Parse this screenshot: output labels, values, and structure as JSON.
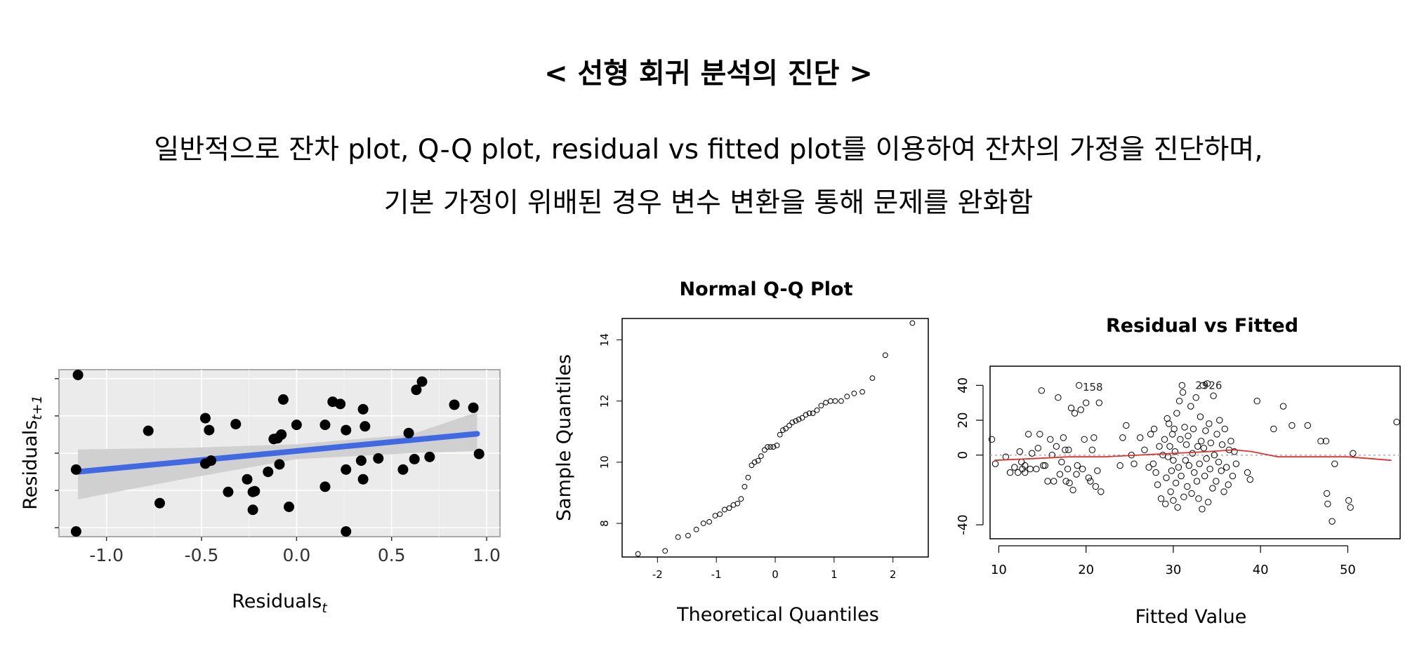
{
  "header": {
    "title": "< 선형 회귀 분석의 진단 >",
    "line1": "일반적으로 잔차 plot, Q-Q plot, residual vs fitted plot를 이용하여 잔차의 가정을 진단하며,",
    "line2": "기본 가정이 위배된 경우 변수 변환을 통해 문제를 완화함"
  },
  "chart_data": [
    {
      "type": "scatter",
      "title": "",
      "xlabel": "Residuals",
      "xlabel_sub": "t",
      "ylabel": "Residuals",
      "ylabel_sub": "t+1",
      "xlim": [
        -1.25,
        1.07
      ],
      "ylim": [
        -1.12,
        1.12
      ],
      "xticks": [
        -1.0,
        -0.5,
        0.0,
        0.5,
        1.0
      ],
      "xtick_labels": [
        "-1.0",
        "-0.5",
        "0.0",
        "0.5",
        "1.0"
      ],
      "yticks": [
        -1.0,
        -0.5,
        0.0,
        0.5,
        1.0
      ],
      "ytick_labels": [],
      "grid": true,
      "regression": {
        "x": [
          -1.15,
          0.95
        ],
        "y": [
          -0.25,
          0.26
        ],
        "color": "#4169e1"
      },
      "band": {
        "x": [
          -1.15,
          -0.6,
          0.0,
          0.6,
          0.95
        ],
        "upper": [
          0.05,
          0.07,
          0.12,
          0.25,
          0.55
        ],
        "lower": [
          -0.62,
          -0.35,
          -0.08,
          0.0,
          0.03
        ],
        "color": "#d0d0d0"
      },
      "points": [
        [
          -1.15,
          1.05
        ],
        [
          -1.16,
          -1.05
        ],
        [
          -1.16,
          -0.22
        ],
        [
          -0.78,
          0.3
        ],
        [
          -0.72,
          -0.67
        ],
        [
          -0.48,
          0.47
        ],
        [
          -0.46,
          0.31
        ],
        [
          -0.48,
          -0.14
        ],
        [
          -0.45,
          -0.1
        ],
        [
          -0.36,
          -0.52
        ],
        [
          -0.32,
          0.39
        ],
        [
          -0.26,
          -0.35
        ],
        [
          -0.23,
          -0.52
        ],
        [
          -0.22,
          -0.51
        ],
        [
          -0.23,
          -0.76
        ],
        [
          -0.15,
          -0.25
        ],
        [
          -0.12,
          0.19
        ],
        [
          -0.1,
          0.2
        ],
        [
          -0.08,
          0.25
        ],
        [
          -0.09,
          -0.15
        ],
        [
          -0.07,
          0.72
        ],
        [
          -0.04,
          -0.72
        ],
        [
          0.0,
          0.38
        ],
        [
          0.15,
          -0.45
        ],
        [
          0.15,
          0.38
        ],
        [
          0.19,
          0.69
        ],
        [
          0.23,
          0.66
        ],
        [
          0.26,
          0.31
        ],
        [
          0.26,
          -0.22
        ],
        [
          0.26,
          -1.05
        ],
        [
          0.34,
          -0.1
        ],
        [
          0.35,
          -0.35
        ],
        [
          0.35,
          0.59
        ],
        [
          0.36,
          0.36
        ],
        [
          0.43,
          -0.07
        ],
        [
          0.56,
          -0.22
        ],
        [
          0.59,
          0.27
        ],
        [
          0.63,
          0.85
        ],
        [
          0.62,
          -0.08
        ],
        [
          0.66,
          0.96
        ],
        [
          0.7,
          -0.05
        ],
        [
          0.83,
          0.65
        ],
        [
          0.93,
          0.61
        ],
        [
          0.96,
          -0.01
        ]
      ]
    },
    {
      "type": "scatter",
      "title": "Normal Q-Q Plot",
      "xlabel": "Theoretical Quantiles",
      "ylabel": "Sample Quantiles",
      "xlim": [
        -2.6,
        2.6
      ],
      "ylim": [
        6.9,
        14.7
      ],
      "xticks": [
        -2,
        -1,
        0,
        1,
        2
      ],
      "xtick_labels": [
        "-2",
        "-1",
        "0",
        "1",
        "2"
      ],
      "yticks": [
        8,
        10,
        12,
        14
      ],
      "ytick_labels": [
        "8",
        "10",
        "12",
        "14"
      ],
      "grid": false,
      "points": [
        [
          -2.33,
          7.0
        ],
        [
          -1.87,
          7.1
        ],
        [
          -1.65,
          7.55
        ],
        [
          -1.48,
          7.6
        ],
        [
          -1.34,
          7.8
        ],
        [
          -1.22,
          8.0
        ],
        [
          -1.12,
          8.05
        ],
        [
          -1.02,
          8.25
        ],
        [
          -0.94,
          8.3
        ],
        [
          -0.86,
          8.45
        ],
        [
          -0.78,
          8.5
        ],
        [
          -0.71,
          8.6
        ],
        [
          -0.64,
          8.65
        ],
        [
          -0.58,
          8.8
        ],
        [
          -0.52,
          9.2
        ],
        [
          -0.46,
          9.5
        ],
        [
          -0.4,
          9.9
        ],
        [
          -0.35,
          10.0
        ],
        [
          -0.29,
          10.05
        ],
        [
          -0.24,
          10.2
        ],
        [
          -0.18,
          10.4
        ],
        [
          -0.13,
          10.5
        ],
        [
          -0.08,
          10.5
        ],
        [
          -0.03,
          10.5
        ],
        [
          0.03,
          10.55
        ],
        [
          0.08,
          10.9
        ],
        [
          0.13,
          11.05
        ],
        [
          0.18,
          11.1
        ],
        [
          0.24,
          11.2
        ],
        [
          0.29,
          11.3
        ],
        [
          0.35,
          11.35
        ],
        [
          0.4,
          11.4
        ],
        [
          0.46,
          11.45
        ],
        [
          0.52,
          11.55
        ],
        [
          0.58,
          11.6
        ],
        [
          0.64,
          11.6
        ],
        [
          0.71,
          11.7
        ],
        [
          0.78,
          11.85
        ],
        [
          0.86,
          11.95
        ],
        [
          0.94,
          12.0
        ],
        [
          1.02,
          12.0
        ],
        [
          1.12,
          12.0
        ],
        [
          1.22,
          12.15
        ],
        [
          1.34,
          12.25
        ],
        [
          1.48,
          12.3
        ],
        [
          1.65,
          12.75
        ],
        [
          1.87,
          13.5
        ],
        [
          2.33,
          14.55
        ]
      ]
    },
    {
      "type": "scatter",
      "title": "Residual vs Fitted",
      "xlabel": "Fitted Value",
      "ylabel": "",
      "xlim": [
        9,
        56
      ],
      "ylim": [
        -48,
        51
      ],
      "xticks": [
        10,
        20,
        30,
        40,
        50
      ],
      "xtick_labels": [
        "10",
        "20",
        "30",
        "40",
        "50"
      ],
      "yticks": [
        -40,
        0,
        20,
        40
      ],
      "ytick_labels": [
        "-40",
        "0",
        "20",
        "40"
      ],
      "grid": false,
      "annotations": [
        {
          "text": "158",
          "x": 19.3,
          "y": 39
        },
        {
          "text": "2926",
          "x": 32.2,
          "y": 40
        }
      ],
      "smooth_line": {
        "color": "#e03030",
        "x": [
          9.5,
          14,
          18,
          22,
          26,
          30,
          34,
          37,
          39,
          42,
          46,
          50,
          55
        ],
        "y": [
          -3,
          -2,
          -1,
          -1,
          0,
          1,
          2,
          3,
          2,
          -1,
          -1,
          -1,
          -3
        ]
      },
      "points": [
        [
          9.2,
          9
        ],
        [
          9.6,
          -5
        ],
        [
          10.8,
          -1
        ],
        [
          11.3,
          -10
        ],
        [
          11.8,
          -7
        ],
        [
          12.2,
          -10
        ],
        [
          12.4,
          2
        ],
        [
          12.6,
          -4
        ],
        [
          12.7,
          -8
        ],
        [
          13.0,
          -6
        ],
        [
          13.0,
          -10
        ],
        [
          13.4,
          12
        ],
        [
          13.6,
          -8
        ],
        [
          13.8,
          1
        ],
        [
          14.3,
          -8
        ],
        [
          14.5,
          4
        ],
        [
          14.7,
          12
        ],
        [
          14.9,
          37
        ],
        [
          15.1,
          -6
        ],
        [
          15.3,
          -6
        ],
        [
          15.6,
          -15
        ],
        [
          15.9,
          9
        ],
        [
          16.1,
          0
        ],
        [
          16.3,
          -15
        ],
        [
          16.6,
          5
        ],
        [
          16.8,
          33
        ],
        [
          17.0,
          -11
        ],
        [
          17.2,
          -4
        ],
        [
          17.4,
          10
        ],
        [
          17.6,
          3
        ],
        [
          17.7,
          -15
        ],
        [
          17.9,
          -8
        ],
        [
          18.0,
          3
        ],
        [
          18.1,
          -16
        ],
        [
          18.3,
          27
        ],
        [
          18.5,
          -20
        ],
        [
          18.7,
          24
        ],
        [
          18.9,
          -11
        ],
        [
          19.0,
          -6
        ],
        [
          19.2,
          40
        ],
        [
          19.4,
          26
        ],
        [
          19.6,
          -8
        ],
        [
          19.8,
          9
        ],
        [
          20.0,
          30
        ],
        [
          20.3,
          -13
        ],
        [
          20.5,
          -15
        ],
        [
          20.7,
          3
        ],
        [
          20.9,
          10
        ],
        [
          21.1,
          -18
        ],
        [
          21.3,
          -9
        ],
        [
          21.5,
          30
        ],
        [
          21.7,
          -21
        ],
        [
          23.9,
          -6
        ],
        [
          24.2,
          10
        ],
        [
          24.6,
          17
        ],
        [
          25.2,
          0
        ],
        [
          25.5,
          -5
        ],
        [
          26.2,
          10
        ],
        [
          26.7,
          3
        ],
        [
          27.2,
          -7
        ],
        [
          27.4,
          12
        ],
        [
          27.7,
          -5
        ],
        [
          27.8,
          15
        ],
        [
          28.0,
          -10
        ],
        [
          28.2,
          -17
        ],
        [
          28.4,
          5
        ],
        [
          28.6,
          -25
        ],
        [
          28.8,
          0
        ],
        [
          29.0,
          9
        ],
        [
          29.1,
          -28
        ],
        [
          29.2,
          -13
        ],
        [
          29.3,
          21
        ],
        [
          29.4,
          -1
        ],
        [
          29.5,
          18
        ],
        [
          29.6,
          5
        ],
        [
          29.7,
          -21
        ],
        [
          29.8,
          -9
        ],
        [
          29.9,
          12
        ],
        [
          30.0,
          -3
        ],
        [
          30.0,
          -26
        ],
        [
          30.1,
          15
        ],
        [
          30.2,
          2
        ],
        [
          30.3,
          -16
        ],
        [
          30.4,
          24
        ],
        [
          30.5,
          -30
        ],
        [
          30.6,
          -7
        ],
        [
          30.7,
          31
        ],
        [
          30.8,
          9
        ],
        [
          30.9,
          -12
        ],
        [
          31.0,
          40
        ],
        [
          31.1,
          36
        ],
        [
          31.2,
          -24
        ],
        [
          31.3,
          16
        ],
        [
          31.4,
          -3
        ],
        [
          31.5,
          6
        ],
        [
          31.6,
          -18
        ],
        [
          31.7,
          11
        ],
        [
          31.8,
          -6
        ],
        [
          32.0,
          28
        ],
        [
          32.1,
          -22
        ],
        [
          32.2,
          1
        ],
        [
          32.3,
          15
        ],
        [
          32.4,
          -10
        ],
        [
          32.6,
          33
        ],
        [
          32.7,
          -15
        ],
        [
          32.8,
          5
        ],
        [
          32.9,
          -25
        ],
        [
          33.0,
          -5
        ],
        [
          33.1,
          22
        ],
        [
          33.2,
          8
        ],
        [
          33.3,
          -31
        ],
        [
          33.4,
          40
        ],
        [
          33.5,
          4
        ],
        [
          33.6,
          -12
        ],
        [
          33.7,
          14
        ],
        [
          33.8,
          -2
        ],
        [
          33.9,
          41
        ],
        [
          34.0,
          -27
        ],
        [
          34.1,
          18
        ],
        [
          34.2,
          -8
        ],
        [
          34.3,
          7
        ],
        [
          34.5,
          -19
        ],
        [
          34.6,
          34
        ],
        [
          34.7,
          0
        ],
        [
          34.9,
          -15
        ],
        [
          35.0,
          12
        ],
        [
          35.2,
          -4
        ],
        [
          35.3,
          20
        ],
        [
          35.5,
          -9
        ],
        [
          35.6,
          6
        ],
        [
          35.8,
          -21
        ],
        [
          35.9,
          15
        ],
        [
          36.1,
          -7
        ],
        [
          36.3,
          -17
        ],
        [
          36.4,
          3
        ],
        [
          36.6,
          8
        ],
        [
          36.8,
          -12
        ],
        [
          37.0,
          2
        ],
        [
          37.2,
          -5
        ],
        [
          38.5,
          -10
        ],
        [
          38.8,
          -14
        ],
        [
          39.6,
          31
        ],
        [
          41.5,
          15
        ],
        [
          42.6,
          28
        ],
        [
          43.6,
          17
        ],
        [
          45.4,
          17
        ],
        [
          46.9,
          8
        ],
        [
          47.5,
          8
        ],
        [
          47.6,
          -22
        ],
        [
          47.7,
          -28
        ],
        [
          48.2,
          -38
        ],
        [
          48.5,
          -5
        ],
        [
          50.1,
          -26
        ],
        [
          50.3,
          -30
        ],
        [
          50.6,
          1
        ],
        [
          55.6,
          19
        ]
      ]
    }
  ]
}
